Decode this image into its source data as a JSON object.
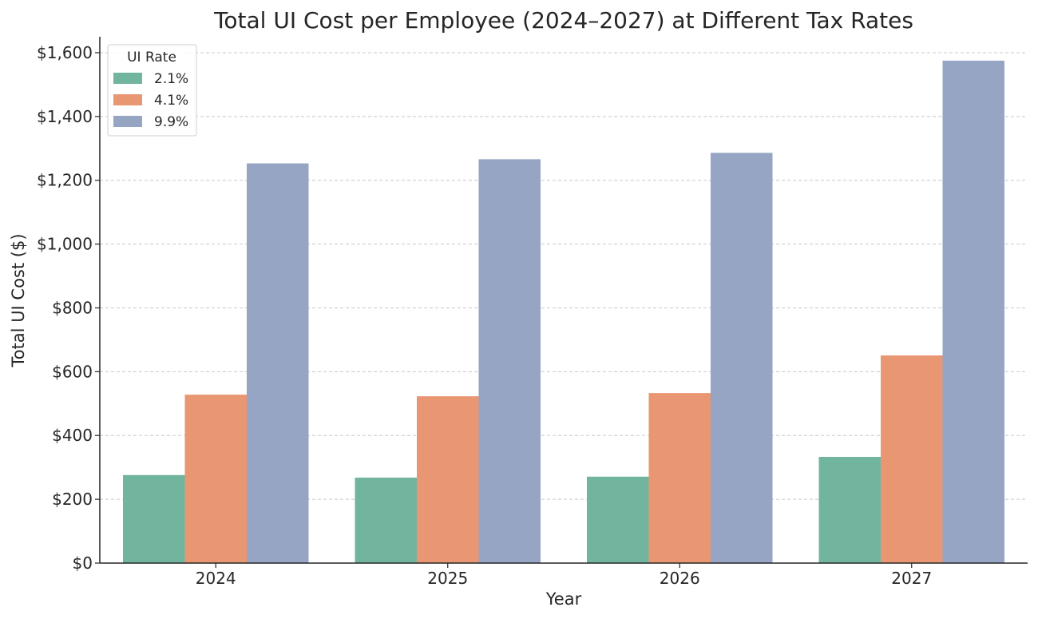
{
  "chart_data": {
    "type": "bar",
    "title": "Total UI Cost per Employee (2024–2027) at Different Tax Rates",
    "xlabel": "Year",
    "ylabel": "Total UI Cost ($)",
    "categories": [
      "2024",
      "2025",
      "2026",
      "2027"
    ],
    "series": [
      {
        "name": "2.1%",
        "color": "#72b59f",
        "values": [
          276,
          268,
          271,
          333
        ]
      },
      {
        "name": "4.1%",
        "color": "#e99673",
        "values": [
          528,
          523,
          533,
          651
        ]
      },
      {
        "name": "9.9%",
        "color": "#95a5c3",
        "values": [
          1253,
          1266,
          1286,
          1575
        ]
      }
    ],
    "ylim": [
      0,
      1650
    ],
    "yticks": [
      0,
      200,
      400,
      600,
      800,
      1000,
      1200,
      1400,
      1600
    ],
    "ytick_labels": [
      "$0",
      "$200",
      "$400",
      "$600",
      "$800",
      "$1,000",
      "$1,200",
      "$1,400",
      "$1,600"
    ],
    "grid": true,
    "legend": {
      "title": "UI Rate",
      "placement": "top-left"
    }
  }
}
